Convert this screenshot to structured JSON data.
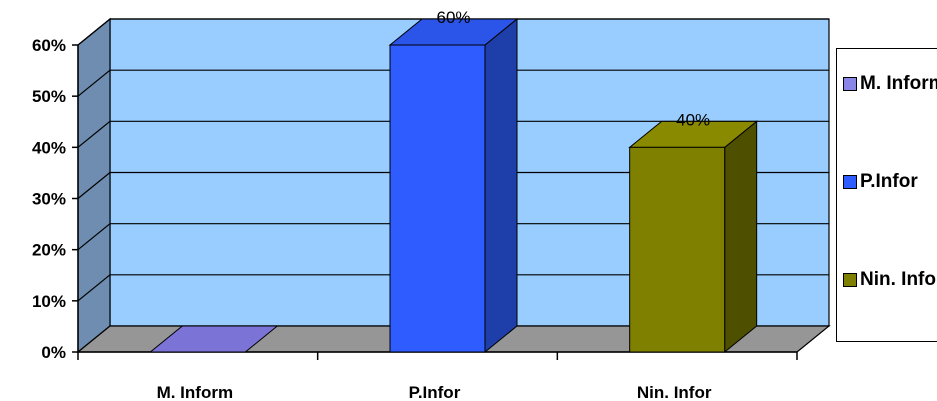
{
  "chart_data": {
    "type": "bar",
    "style": "3d-column",
    "categories": [
      "M. Inform",
      "P.Infor",
      "Nin. Infor"
    ],
    "values": [
      0,
      60,
      40
    ],
    "value_unit": "%",
    "data_labels": [
      "",
      "60%",
      "40%"
    ],
    "colors": [
      "#7B73D6",
      "#2E5CFF",
      "#808000"
    ],
    "ylim": [
      0,
      60
    ],
    "yticks": [
      "0%",
      "10%",
      "20%",
      "30%",
      "40%",
      "50%",
      "60%"
    ],
    "grid": true,
    "legend_position": "right",
    "legend": [
      {
        "label": "M. Inform",
        "color": "#8A86E8"
      },
      {
        "label": "P.Infor",
        "color": "#2E5CFF"
      },
      {
        "label": "Nin. Infor",
        "color": "#808000"
      }
    ],
    "wall_color": "#99CCFF",
    "side_wall_color": "#6E8DB0",
    "floor_color": "#969696"
  }
}
